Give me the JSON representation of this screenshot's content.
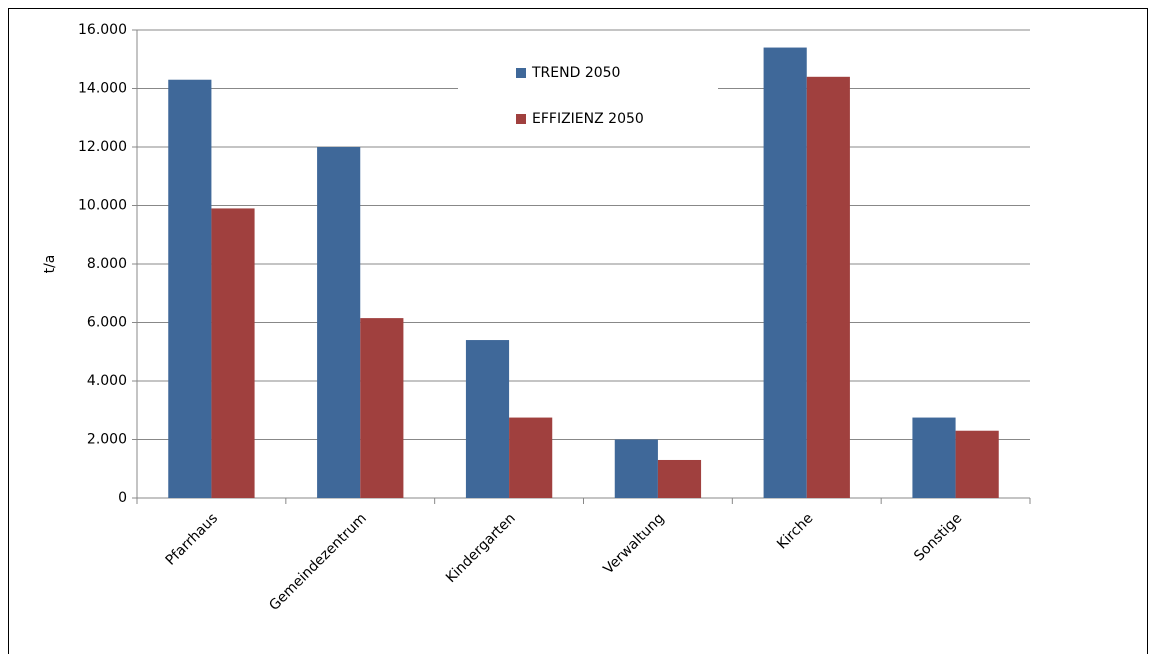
{
  "chart_data": {
    "type": "bar",
    "ylabel": "t/a",
    "categories": [
      "Pfarrhaus",
      "Gemeindezentrum",
      "Kindergarten",
      "Verwaltung",
      "Kirche",
      "Sonstige"
    ],
    "series": [
      {
        "name": "TREND 2050",
        "color": "#3f6899",
        "values": [
          14300,
          12000,
          5400,
          2000,
          15400,
          2750
        ]
      },
      {
        "name": "EFFIZIENZ 2050",
        "color": "#a0403e",
        "values": [
          9900,
          6150,
          2750,
          1300,
          14400,
          2300
        ]
      }
    ],
    "ylim": [
      0,
      16000
    ],
    "yticks": [
      0,
      {
        "value": 2000,
        "label": "2.000"
      },
      {
        "value": 4000,
        "label": "4.000"
      },
      {
        "value": 6000,
        "label": "6.000"
      },
      {
        "value": 8000,
        "label": "8.000"
      },
      {
        "value": 10000,
        "label": "10.000"
      },
      {
        "value": 12000,
        "label": "12.000"
      },
      {
        "value": 14000,
        "label": "14.000"
      },
      {
        "value": 16000,
        "label": "16.000"
      }
    ],
    "grid": true,
    "legend": "top"
  }
}
